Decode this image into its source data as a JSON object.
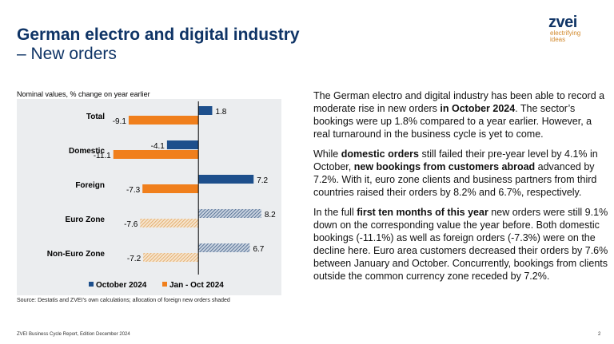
{
  "header": {
    "title_line1": "German electro and digital industry",
    "title_line2": "– New orders"
  },
  "logo": {
    "word": "zvei",
    "tagline_line1": "electrifying",
    "tagline_line2": "ideas"
  },
  "chart_subtitle": "Nominal values, % change on year earlier",
  "chart_source": "Source: Destatis and ZVEI’s own calculations; allocation of foreign new orders shaded",
  "colors": {
    "october": "#1d4f8c",
    "jan_oct": "#f07f1c",
    "shaded_blue": "#3f5e86",
    "shaded_orange": "#e8b47a",
    "background": "#ebedef",
    "title": "#0f3466"
  },
  "chart_data": {
    "type": "bar",
    "orientation": "horizontal",
    "title": "",
    "xlabel": "",
    "ylabel": "",
    "categories": [
      "Total",
      "Domestic",
      "Foreign",
      "Euro Zone",
      "Non-Euro Zone"
    ],
    "series": [
      {
        "name": "October 2024",
        "values": [
          1.8,
          -4.1,
          7.2,
          8.2,
          6.7
        ],
        "shaded": [
          false,
          false,
          false,
          true,
          true
        ]
      },
      {
        "name": "Jan - Oct 2024",
        "values": [
          -9.1,
          -11.1,
          -7.3,
          -7.6,
          -7.2
        ],
        "shaded": [
          false,
          false,
          false,
          true,
          true
        ]
      }
    ],
    "data_labels": [
      [
        "1.8",
        "-4.1",
        "7.2",
        "8.2",
        "6.7"
      ],
      [
        "-9.1",
        "-11.1",
        "-7.3",
        "-7.6",
        "-7.2"
      ]
    ],
    "xlim": [
      -11.7,
      10.2
    ],
    "grid": false,
    "legend": {
      "position": "bottom",
      "entries": [
        "October 2024",
        "Jan - Oct 2024"
      ]
    },
    "note": "allocation of foreign new orders shaded"
  },
  "body_text": {
    "p1": [
      {
        "t": "The German electro and digital industry has been able to record a moderate rise in new orders ",
        "b": false
      },
      {
        "t": "in October 2024",
        "b": true
      },
      {
        "t": ". The sector’s bookings were up 1.8% compared to a year earlier. However, a real turnaround in the business cycle is yet to come.",
        "b": false
      }
    ],
    "p2": [
      {
        "t": "While ",
        "b": false
      },
      {
        "t": "domestic orders",
        "b": true
      },
      {
        "t": " still failed their pre-year level by 4.1% in October, ",
        "b": false
      },
      {
        "t": "new bookings from customers abroad",
        "b": true
      },
      {
        "t": " advanced by 7.2%. With it, euro zone clients and business partners from third countries raised their orders by 8.2% and 6.7%, respectively.",
        "b": false
      }
    ],
    "p3": [
      {
        "t": "In the full ",
        "b": false
      },
      {
        "t": "first ten months of this year",
        "b": true
      },
      {
        "t": " new orders were still 9.1% down on the corresponding value the year before. Both domestic bookings (-11.1%) as well as foreign orders (-7.3%) were on the decline here. Euro area customers decreased their orders by 7.6% between January and October. Concurrently, bookings from clients outside the common currency zone receded by 7.2%.",
        "b": false
      }
    ]
  },
  "footer": {
    "left": "ZVEI Business Cycle Report, Edition December 2024",
    "page_number": "2"
  }
}
